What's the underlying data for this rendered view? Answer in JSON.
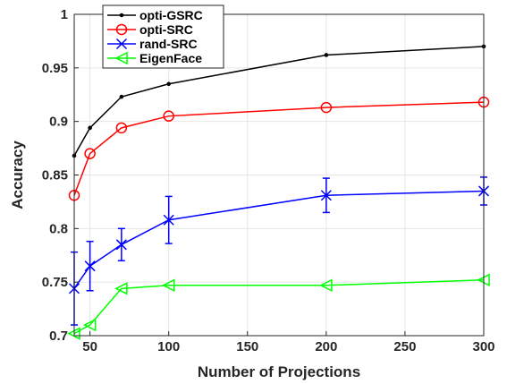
{
  "chart_data": {
    "type": "line",
    "title": "",
    "xlabel": "Number of Projections",
    "ylabel": "Accuracy",
    "xlim": [
      40,
      300
    ],
    "ylim": [
      0.7,
      1.0
    ],
    "xticks": [
      50,
      100,
      150,
      200,
      250,
      300
    ],
    "yticks": [
      0.7,
      0.75,
      0.8,
      0.85,
      0.9,
      0.95,
      1.0
    ],
    "xtick_labels": [
      "50",
      "100",
      "150",
      "200",
      "250",
      "300"
    ],
    "ytick_labels": [
      "0.7",
      "0.75",
      "0.8",
      "0.85",
      "0.9",
      "0.95",
      "1"
    ],
    "grid": true,
    "legend_position": "top-left",
    "series": [
      {
        "name": "opti-GSRC",
        "color": "#000000",
        "marker": "dot",
        "x": [
          40,
          50,
          70,
          100,
          200,
          300
        ],
        "y": [
          0.868,
          0.894,
          0.923,
          0.935,
          0.962,
          0.97
        ]
      },
      {
        "name": "opti-SRC",
        "color": "#ff0000",
        "marker": "circle",
        "x": [
          40,
          50,
          70,
          100,
          200,
          300
        ],
        "y": [
          0.831,
          0.87,
          0.894,
          0.905,
          0.913,
          0.918
        ]
      },
      {
        "name": "rand-SRC",
        "color": "#0000ff",
        "marker": "x",
        "x": [
          40,
          50,
          70,
          100,
          200,
          300
        ],
        "y": [
          0.744,
          0.765,
          0.785,
          0.808,
          0.831,
          0.835
        ],
        "error": [
          0.034,
          0.023,
          0.015,
          0.022,
          0.016,
          0.013
        ]
      },
      {
        "name": "EigenFace",
        "color": "#00ff00",
        "marker": "triangle-left",
        "x": [
          40,
          50,
          70,
          100,
          200,
          300
        ],
        "y": [
          0.702,
          0.71,
          0.744,
          0.747,
          0.747,
          0.752
        ]
      }
    ]
  }
}
